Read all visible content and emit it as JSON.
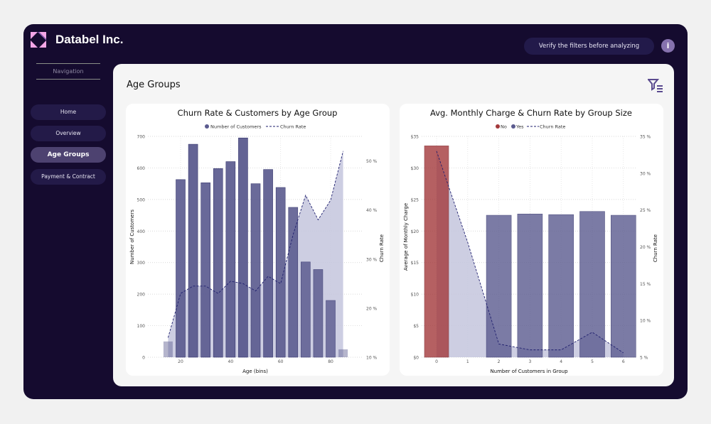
{
  "brand": {
    "name": "Databel Inc."
  },
  "nav": {
    "heading": "Navigation",
    "items": [
      {
        "label": "Home"
      },
      {
        "label": "Overview"
      },
      {
        "label": "Age Groups"
      },
      {
        "label": "Payment & Contract"
      }
    ]
  },
  "header": {
    "notice": "Verify the filters before analyzing",
    "info_icon": "i"
  },
  "page": {
    "title": "Age Groups"
  },
  "colors": {
    "bar": "#5b5b8f",
    "no": "#a3393b",
    "area": "#c4c5dd",
    "line": "#1f1f6e"
  },
  "chart_data": [
    {
      "type": "bar",
      "title": "Churn Rate & Customers by Age Group",
      "legend": [
        "Number of Customers",
        "Churn Rate"
      ],
      "xlabel": "Age (bins)",
      "ylabel": "Number of Customers",
      "y2label": "Churn Rate",
      "x": [
        15,
        20,
        25,
        30,
        35,
        40,
        45,
        50,
        55,
        60,
        65,
        70,
        75,
        80,
        85
      ],
      "series": [
        {
          "name": "Number of Customers",
          "values": [
            50,
            563,
            675,
            553,
            598,
            620,
            695,
            550,
            595,
            538,
            475,
            302,
            278,
            180,
            25
          ]
        },
        {
          "name": "Churn Rate",
          "values": [
            14,
            23,
            24.5,
            24.5,
            23,
            25.5,
            25,
            23.5,
            26.5,
            25,
            35,
            43,
            38,
            42,
            52
          ]
        }
      ],
      "xticks": [
        "20",
        "40",
        "60",
        "80"
      ],
      "yticks": [
        "0",
        "100",
        "200",
        "300",
        "400",
        "500",
        "600",
        "700"
      ],
      "y2ticks": [
        "10 %",
        "20 %",
        "30 %",
        "40 %",
        "50 %"
      ],
      "ylim": [
        0,
        700
      ],
      "y2lim": [
        10,
        55
      ]
    },
    {
      "type": "bar",
      "title": "Avg. Monthly Charge & Churn Rate by Group Size",
      "legend": [
        "No",
        "Yes",
        "Churn Rate"
      ],
      "xlabel": "Number of Customers in Group",
      "ylabel": "Average of Monthly Charge",
      "y2label": "Churn Rate",
      "categories": [
        "0",
        "1",
        "2",
        "3",
        "4",
        "5",
        "6"
      ],
      "series": [
        {
          "name": "No",
          "values": [
            33.5,
            null,
            null,
            null,
            null,
            null,
            null
          ]
        },
        {
          "name": "Yes",
          "values": [
            null,
            null,
            22.5,
            22.7,
            22.6,
            23.1,
            22.5
          ]
        },
        {
          "name": "Churn Rate",
          "values": [
            33,
            20.6,
            6.8,
            6,
            6,
            8.4,
            5.6
          ]
        }
      ],
      "yticks": [
        "$0",
        "$5",
        "$10",
        "$15",
        "$20",
        "$25",
        "$30",
        "$35"
      ],
      "y2ticks": [
        "5 %",
        "10 %",
        "15 %",
        "20 %",
        "25 %",
        "30 %",
        "35 %"
      ],
      "ylim": [
        0,
        35
      ],
      "y2lim": [
        5,
        35
      ]
    }
  ]
}
